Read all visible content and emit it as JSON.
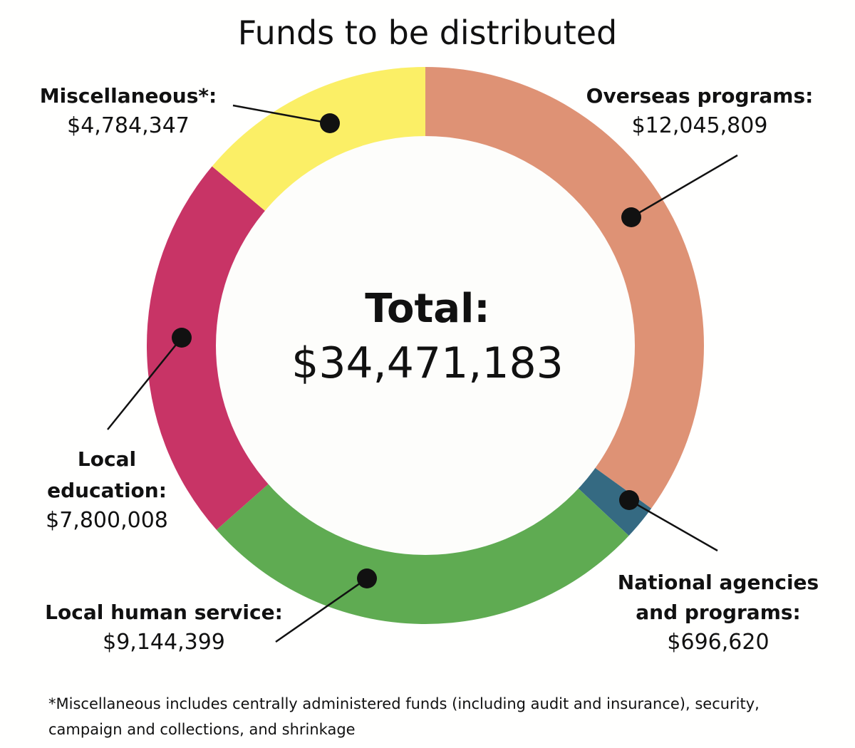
{
  "chart_data": {
    "type": "pie",
    "variant": "donut",
    "title": "Funds to be distributed",
    "center_label": "Total:",
    "center_value": "$34,471,183",
    "total": 34471183,
    "start": "12 o'clock, clockwise",
    "slices": [
      {
        "name": "Overseas programs:",
        "value": 12045809,
        "value_label": "$12,045,809",
        "color": "#de9275"
      },
      {
        "name": "National agencies and programs:",
        "name_lines": [
          "National agencies",
          "and programs:"
        ],
        "value": 696620,
        "value_label": "$696,620",
        "color": "#356a82"
      },
      {
        "name": "Local human service:",
        "value": 9144399,
        "value_label": "$9,144,399",
        "color": "#5fab52"
      },
      {
        "name": "Local education:",
        "name_lines": [
          "Local",
          "education:"
        ],
        "value": 7800008,
        "value_label": "$7,800,008",
        "color": "#c83466"
      },
      {
        "name": "Miscellaneous*:",
        "value": 4784347,
        "value_label": "$4,784,347",
        "color": "#fbef66"
      }
    ],
    "footnote": [
      "*Miscellaneous includes centrally administered funds (including audit and insurance), security,",
      "campaign and collections, and shrinkage"
    ]
  }
}
